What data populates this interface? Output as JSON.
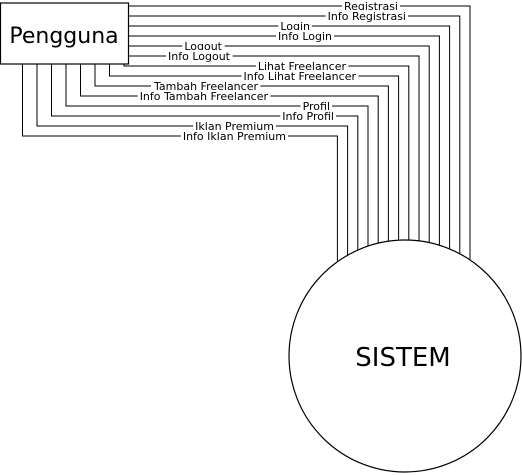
{
  "entity": {
    "name": "Pengguna"
  },
  "process": {
    "name": "SISTEM"
  },
  "flows": [
    {
      "label": "Registrasi"
    },
    {
      "label": "Info Registrasi"
    },
    {
      "label": "Login"
    },
    {
      "label": "Info Login"
    },
    {
      "label": "Logout"
    },
    {
      "label": "Info Logout"
    },
    {
      "label": "Lihat Freelancer"
    },
    {
      "label": "Info Lihat Freelancer"
    },
    {
      "label": "Tambah Freelancer"
    },
    {
      "label": "Info Tambah Freelancer"
    },
    {
      "label": "Profil"
    },
    {
      "label": "Info Profil"
    },
    {
      "label": "Iklan Premium"
    },
    {
      "label": "Info Iklan Premium"
    }
  ]
}
